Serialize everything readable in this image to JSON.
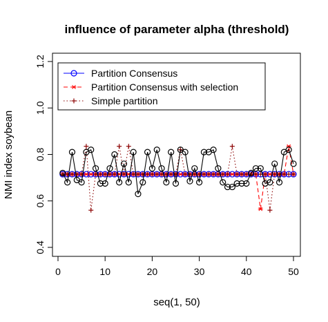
{
  "chart_data": {
    "type": "line",
    "title": "influence of parameter alpha (threshold)",
    "xlabel": "seq(1, 50)",
    "ylabel": "NMI index soybean",
    "xlim": [
      0,
      50
    ],
    "ylim": [
      0.4,
      1.2
    ],
    "x_ticks": [
      0,
      10,
      20,
      30,
      40,
      50
    ],
    "y_ticks": [
      0.4,
      0.6,
      0.8,
      1.0,
      1.2
    ],
    "y_tick_labels": [
      "0.4",
      "0.6",
      "0.8",
      "1.0",
      "1.2"
    ],
    "legend_position": "top-left",
    "grid": false,
    "x": [
      1,
      2,
      3,
      4,
      5,
      6,
      7,
      8,
      9,
      10,
      11,
      12,
      13,
      14,
      15,
      16,
      17,
      18,
      19,
      20,
      21,
      22,
      23,
      24,
      25,
      26,
      27,
      28,
      29,
      30,
      31,
      32,
      33,
      34,
      35,
      36,
      37,
      38,
      39,
      40,
      41,
      42,
      43,
      44,
      45,
      46,
      47,
      48,
      49,
      50
    ],
    "series": [
      {
        "name": "Partition Consensus",
        "color": "#0000ff",
        "line_style": "solid",
        "marker": "circle-open",
        "values": [
          0.715,
          0.715,
          0.715,
          0.715,
          0.715,
          0.715,
          0.715,
          0.715,
          0.715,
          0.715,
          0.715,
          0.715,
          0.715,
          0.715,
          0.715,
          0.715,
          0.715,
          0.715,
          0.715,
          0.715,
          0.715,
          0.715,
          0.715,
          0.715,
          0.715,
          0.715,
          0.715,
          0.715,
          0.715,
          0.715,
          0.715,
          0.715,
          0.715,
          0.715,
          0.715,
          0.715,
          0.715,
          0.715,
          0.715,
          0.715,
          0.715,
          0.715,
          0.715,
          0.715,
          0.715,
          0.715,
          0.715,
          0.715,
          0.715,
          0.715
        ]
      },
      {
        "name": "Partition Consensus with selection",
        "color": "#ff0000",
        "line_style": "dashed",
        "marker": "asterisk",
        "values": [
          0.715,
          0.715,
          0.715,
          0.715,
          0.715,
          0.715,
          0.715,
          0.715,
          0.715,
          0.715,
          0.715,
          0.715,
          0.715,
          0.715,
          0.715,
          0.715,
          0.715,
          0.715,
          0.715,
          0.715,
          0.715,
          0.715,
          0.715,
          0.715,
          0.715,
          0.715,
          0.715,
          0.715,
          0.715,
          0.715,
          0.715,
          0.715,
          0.715,
          0.715,
          0.715,
          0.715,
          0.715,
          0.715,
          0.715,
          0.715,
          0.715,
          0.715,
          0.565,
          0.715,
          0.715,
          0.715,
          0.715,
          0.715,
          0.835,
          0.715
        ]
      },
      {
        "name": "Simple partition",
        "color": "#8b0000",
        "line_style": "dotted",
        "marker": "plus",
        "values": [
          0.715,
          0.715,
          0.715,
          0.715,
          0.715,
          0.835,
          0.56,
          0.715,
          0.715,
          0.715,
          0.715,
          0.715,
          0.835,
          0.715,
          0.835,
          0.715,
          0.715,
          0.715,
          0.715,
          0.715,
          0.715,
          0.715,
          0.715,
          0.715,
          0.715,
          0.82,
          0.715,
          0.715,
          0.715,
          0.715,
          0.715,
          0.715,
          0.715,
          0.715,
          0.715,
          0.715,
          0.835,
          0.715,
          0.715,
          0.715,
          0.715,
          0.715,
          0.715,
          0.715,
          0.56,
          0.715,
          0.715,
          0.715,
          0.715,
          0.715
        ]
      },
      {
        "color": "#000000",
        "line_style": "solid",
        "marker": "circle-open",
        "values": [
          0.72,
          0.68,
          0.81,
          0.69,
          0.68,
          0.81,
          0.82,
          0.74,
          0.675,
          0.675,
          0.74,
          0.8,
          0.68,
          0.76,
          0.68,
          0.81,
          0.63,
          0.68,
          0.81,
          0.74,
          0.82,
          0.74,
          0.68,
          0.81,
          0.675,
          0.82,
          0.81,
          0.685,
          0.74,
          0.68,
          0.81,
          0.81,
          0.82,
          0.74,
          0.68,
          0.66,
          0.66,
          0.675,
          0.675,
          0.675,
          0.72,
          0.74,
          0.74,
          0.675,
          0.68,
          0.76,
          0.68,
          0.81,
          0.82,
          0.76
        ]
      }
    ]
  }
}
